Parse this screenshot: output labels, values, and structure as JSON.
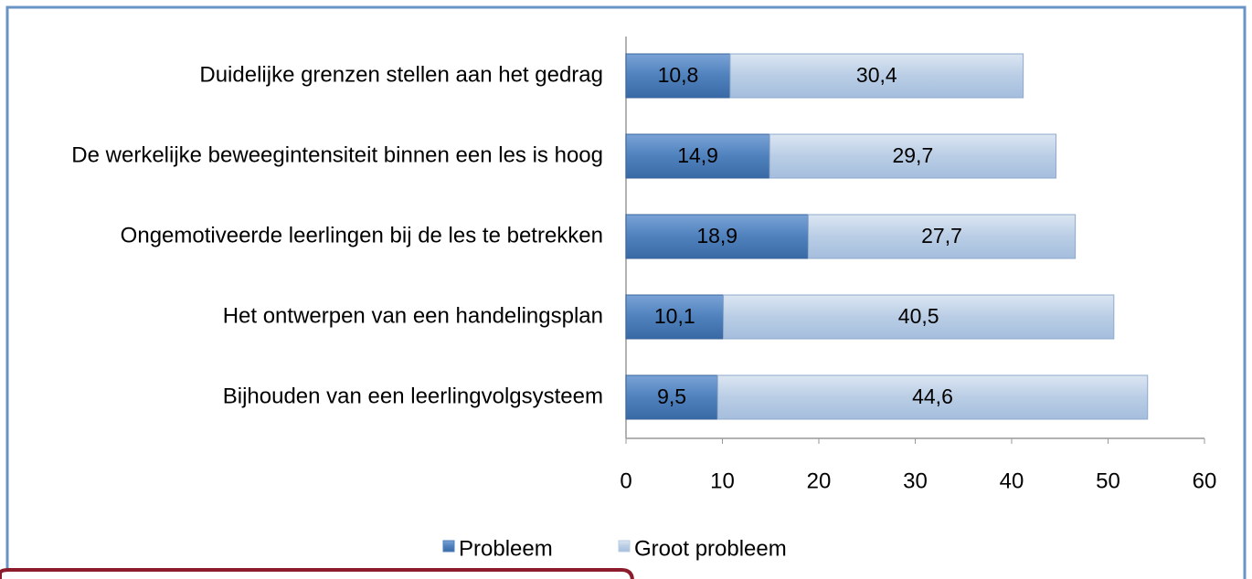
{
  "chart_data": {
    "type": "stacked_bar_horizontal",
    "categories": [
      "Duidelijke grenzen stellen aan het gedrag",
      "De werkelijke beweegintensiteit binnen een les is hoog",
      "Ongemotiveerde leerlingen bij de les te betrekken",
      "Het ontwerpen van een handelingsplan",
      "Bijhouden van een leerlingvolgsysteem"
    ],
    "series": [
      {
        "name": "Probleem",
        "color": "#4f81bd",
        "values": [
          10.8,
          14.9,
          18.9,
          10.1,
          9.5
        ],
        "value_labels": [
          "10,8",
          "14,9",
          "18,9",
          "10,1",
          "9,5"
        ]
      },
      {
        "name": "Groot probleem",
        "color": "#b9cde5",
        "values": [
          30.4,
          29.7,
          27.7,
          40.5,
          44.6
        ],
        "value_labels": [
          "30,4",
          "29,7",
          "27,7",
          "40,5",
          "44,6"
        ]
      }
    ],
    "xlim": [
      0,
      60
    ],
    "xticks": [
      0,
      10,
      20,
      30,
      40,
      50,
      60
    ],
    "legend": "bottom"
  }
}
